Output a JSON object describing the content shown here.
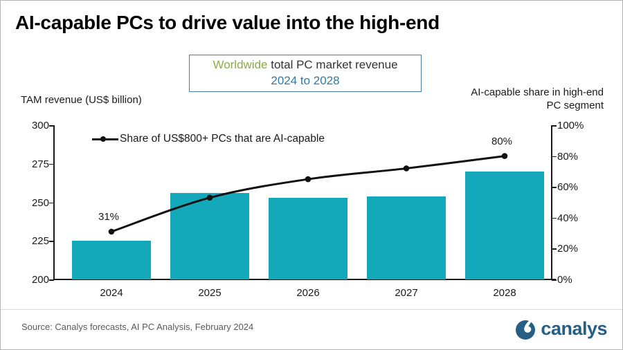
{
  "title": "AI-capable PCs to drive value into the high-end",
  "subtitle": {
    "part1_green": "Worldwide",
    "part1_rest": " total PC market revenue",
    "part2": "2024 to 2028"
  },
  "left_axis": {
    "title": "TAM revenue (US$ billion)",
    "ticks": [
      "300",
      "275",
      "250",
      "225",
      "200"
    ]
  },
  "right_axis": {
    "title_line1": "AI-capable share in high-end",
    "title_line2": "PC segment",
    "ticks": [
      "100%",
      "80%",
      "60%",
      "40%",
      "20%",
      "0%"
    ]
  },
  "legend": {
    "label": "Share of US$800+ PCs that are AI-capable"
  },
  "chart_data": {
    "type": "combo",
    "categories": [
      "2024",
      "2025",
      "2026",
      "2027",
      "2028"
    ],
    "series": [
      {
        "name": "Worldwide total PC market revenue",
        "type": "bar",
        "axis": "left",
        "unit": "US$ billion",
        "values": [
          225,
          256,
          253,
          254,
          270
        ]
      },
      {
        "name": "Share of US$800+ PCs that are AI-capable",
        "type": "line",
        "axis": "right",
        "unit": "%",
        "values": [
          31,
          53,
          65,
          72,
          80
        ]
      }
    ],
    "left_ylim": [
      200,
      300
    ],
    "right_ylim": [
      0,
      100
    ],
    "grid": false,
    "legend_position": "top-left-inside",
    "point_labels": {
      "first": "31%",
      "last": "80%"
    }
  },
  "footer": {
    "source": "Source: Canalys forecasts, AI PC Analysis, February 2024",
    "brand": "canalys"
  },
  "colors": {
    "bar": "#14a8bb",
    "line": "#111111",
    "subtitle_green": "#8fa84e",
    "subtitle_blue": "#2e79a5",
    "box_border": "#4a7ba6",
    "logo_blue": "#265e86",
    "source_text": "#595959"
  }
}
